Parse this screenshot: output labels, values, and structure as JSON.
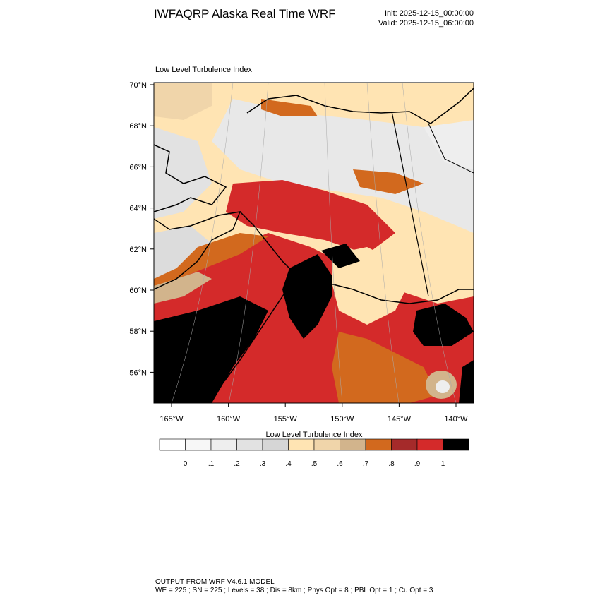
{
  "header": {
    "title": "IWFAQRP Alaska Real Time WRF",
    "init": "Init: 2025-12-15_00:00:00",
    "valid": "Valid: 2025-12-15_06:00:00"
  },
  "map": {
    "title": "Low Level Turbulence Index",
    "lat_labels": [
      "70°N",
      "68°N",
      "66°N",
      "64°N",
      "62°N",
      "60°N",
      "58°N",
      "56°N"
    ],
    "lon_labels": [
      "165°W",
      "160°W",
      "155°W",
      "150°W",
      "145°W",
      "140°W"
    ]
  },
  "colorbar": {
    "title": "Low Level Turbulence Index",
    "colors": [
      "#ffffff",
      "#f7f7f7",
      "#eeeeee",
      "#e2e2e2",
      "#d6d6d6",
      "#ffe4b3",
      "#f0d5aa",
      "#d2b48c",
      "#d2691e",
      "#a52a2a",
      "#d42a2a",
      "#000000"
    ],
    "labels": [
      "0",
      ".1",
      ".2",
      ".3",
      ".4",
      ".5",
      ".6",
      ".7",
      ".8",
      ".9",
      "1"
    ]
  },
  "footer": {
    "line1": "OUTPUT FROM WRF V4.6.1 MODEL",
    "line2": "WE = 225 ; SN = 225 ; Levels = 38 ; Dis = 8km ; Phys Opt = 8 ; PBL Opt = 1 ; Cu Opt = 3"
  }
}
